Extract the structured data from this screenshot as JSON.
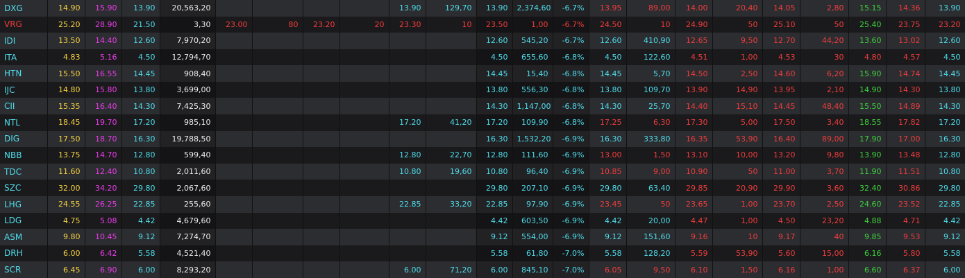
{
  "table": {
    "rows": [
      [
        "DXG",
        "14.90",
        "15.90",
        "13.90",
        "20,563,20",
        null,
        null,
        null,
        null,
        "13.90",
        "129,70",
        "13.90",
        "2,374,60",
        "-6.7%",
        "13.95",
        "89,00",
        "14.00",
        "20,40",
        "14.05",
        "2,80",
        "15.15",
        "14.36",
        "13.90"
      ],
      [
        "VRG",
        "25.20",
        "28.90",
        "21.50",
        "3,30",
        "23.00",
        "80",
        "23.20",
        "20",
        "23.30",
        "10",
        "23.50",
        "1,00",
        "-6.7%",
        "24.50",
        "10",
        "24.90",
        "50",
        "25.10",
        "50",
        "25.40",
        "23.75",
        "23.20"
      ],
      [
        "IDI",
        "13.50",
        "14.40",
        "12.60",
        "7,970,20",
        null,
        null,
        null,
        null,
        null,
        null,
        "12.60",
        "545,20",
        "-6.7%",
        "12.60",
        "410,90",
        "12.65",
        "9,50",
        "12.70",
        "44,20",
        "13.60",
        "13.02",
        "12.60"
      ],
      [
        "ITA",
        "4.83",
        "5.16",
        "4.50",
        "12,794,70",
        null,
        null,
        null,
        null,
        null,
        null,
        "4.50",
        "655,60",
        "-6.8%",
        "4.50",
        "122,60",
        "4.51",
        "1,00",
        "4.53",
        "30",
        "4.80",
        "4.57",
        "4.50"
      ],
      [
        "HTN",
        "15.50",
        "16.55",
        "14.45",
        "908,40",
        null,
        null,
        null,
        null,
        null,
        null,
        "14.45",
        "15,40",
        "-6.8%",
        "14.45",
        "5,70",
        "14.50",
        "2,50",
        "14.60",
        "6,20",
        "15.90",
        "14.74",
        "14.45"
      ],
      [
        "IJC",
        "14.80",
        "15.80",
        "13.80",
        "3,699,00",
        null,
        null,
        null,
        null,
        null,
        null,
        "13.80",
        "556,30",
        "-6.8%",
        "13.80",
        "109,70",
        "13.90",
        "14,90",
        "13.95",
        "2,10",
        "14.90",
        "14.30",
        "13.80"
      ],
      [
        "CII",
        "15.35",
        "16.40",
        "14.30",
        "7,425,30",
        null,
        null,
        null,
        null,
        null,
        null,
        "14.30",
        "1,147,00",
        "-6.8%",
        "14.30",
        "25,70",
        "14.40",
        "15,10",
        "14.45",
        "48,40",
        "15.50",
        "14.89",
        "14.30"
      ],
      [
        "NTL",
        "18.45",
        "19.70",
        "17.20",
        "985,10",
        null,
        null,
        null,
        null,
        "17.20",
        "41,20",
        "17.20",
        "109,90",
        "-6.8%",
        "17.25",
        "6,30",
        "17.30",
        "5,00",
        "17.50",
        "3,40",
        "18.55",
        "17.82",
        "17.20"
      ],
      [
        "DIG",
        "17.50",
        "18.70",
        "16.30",
        "19,788,50",
        null,
        null,
        null,
        null,
        null,
        null,
        "16.30",
        "1,532,20",
        "-6.9%",
        "16.30",
        "333,80",
        "16.35",
        "53,90",
        "16.40",
        "89,00",
        "17.90",
        "17.00",
        "16.30"
      ],
      [
        "NBB",
        "13.75",
        "14.70",
        "12.80",
        "599,40",
        null,
        null,
        null,
        null,
        "12.80",
        "22,70",
        "12.80",
        "111,60",
        "-6.9%",
        "13.00",
        "1,50",
        "13.10",
        "10,00",
        "13.20",
        "9,80",
        "13.90",
        "13.48",
        "12.80"
      ],
      [
        "TDC",
        "11.60",
        "12.40",
        "10.80",
        "2,011,60",
        null,
        null,
        null,
        null,
        "10.80",
        "19,60",
        "10.80",
        "96,40",
        "-6.9%",
        "10.85",
        "9,00",
        "10.90",
        "50",
        "11.00",
        "3,70",
        "11.90",
        "11.51",
        "10.80"
      ],
      [
        "SZC",
        "32.00",
        "34.20",
        "29.80",
        "2,067,60",
        null,
        null,
        null,
        null,
        null,
        null,
        "29.80",
        "207,10",
        "-6.9%",
        "29.80",
        "63,40",
        "29.85",
        "20,90",
        "29.90",
        "3,60",
        "32.40",
        "30.86",
        "29.80"
      ],
      [
        "LHG",
        "24.55",
        "26.25",
        "22.85",
        "255,60",
        null,
        null,
        null,
        null,
        "22.85",
        "33,20",
        "22.85",
        "97,90",
        "-6.9%",
        "23.45",
        "50",
        "23.65",
        "1,00",
        "23.70",
        "2,50",
        "24.60",
        "23.52",
        "22.85"
      ],
      [
        "LDG",
        "4.75",
        "5.08",
        "4.42",
        "4,679,60",
        null,
        null,
        null,
        null,
        null,
        null,
        "4.42",
        "603,50",
        "-6.9%",
        "4.42",
        "20,00",
        "4.47",
        "1,00",
        "4.50",
        "23,20",
        "4.88",
        "4.71",
        "4.42"
      ],
      [
        "ASM",
        "9.80",
        "10.45",
        "9.12",
        "7,274,70",
        null,
        null,
        null,
        null,
        null,
        null,
        "9.12",
        "554,00",
        "-6.9%",
        "9.12",
        "151,60",
        "9.16",
        "10",
        "9.17",
        "40",
        "9.85",
        "9.53",
        "9.12"
      ],
      [
        "DRH",
        "6.00",
        "6.42",
        "5.58",
        "4,521,40",
        null,
        null,
        null,
        null,
        null,
        null,
        "5.58",
        "61,80",
        "-7.0%",
        "5.58",
        "128,20",
        "5.59",
        "53,90",
        "5.60",
        "15,00",
        "6.16",
        "5.80",
        "5.58"
      ],
      [
        "SCR",
        "6.45",
        "6.90",
        "6.00",
        "8,293,20",
        null,
        null,
        null,
        null,
        "6.00",
        "71,20",
        "6.00",
        "845,10",
        "-7.0%",
        "6.05",
        "9,50",
        "6.10",
        "1,50",
        "6.16",
        "1,00",
        "6.60",
        "6.37",
        "6.00"
      ]
    ]
  }
}
